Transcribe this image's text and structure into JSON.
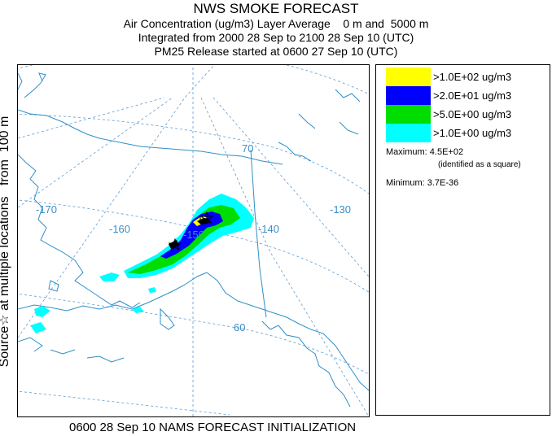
{
  "header": {
    "title": "NWS SMOKE FORECAST",
    "line2": "Air Concentration (ug/m3) Layer Average    0 m and  5000 m",
    "line3": "Integrated from 2000 28 Sep to 2100 28 Sep 10 (UTC)",
    "line4": "PM25 Release started at 0600 27 Sep 10 (UTC)"
  },
  "side_label": "Source☆ at multiple locations   from  100 m",
  "map": {
    "longitude_labels": [
      "-170",
      "-160",
      "-150",
      "-140",
      "-130"
    ],
    "latitude_labels": [
      "70",
      "60"
    ]
  },
  "legend": {
    "entries": [
      {
        "label": ">1.0E+02 ug/m3",
        "color": "#ffff00"
      },
      {
        "label": ">2.0E+01 ug/m3",
        "color": "#0000ff"
      },
      {
        "label": ">5.0E+00 ug/m3",
        "color": "#00dd00"
      },
      {
        "label": ">1.0E+00 ug/m3",
        "color": "#00ffff"
      }
    ],
    "maximum_label": "Maximum:",
    "maximum_value": "4.5E+02",
    "maximum_note": "(identified as a square)",
    "minimum_label": "Minimum:",
    "minimum_value": "3.7E-36"
  },
  "footer": "0600 28 Sep 10 NAMS FORECAST INITIALIZATION"
}
